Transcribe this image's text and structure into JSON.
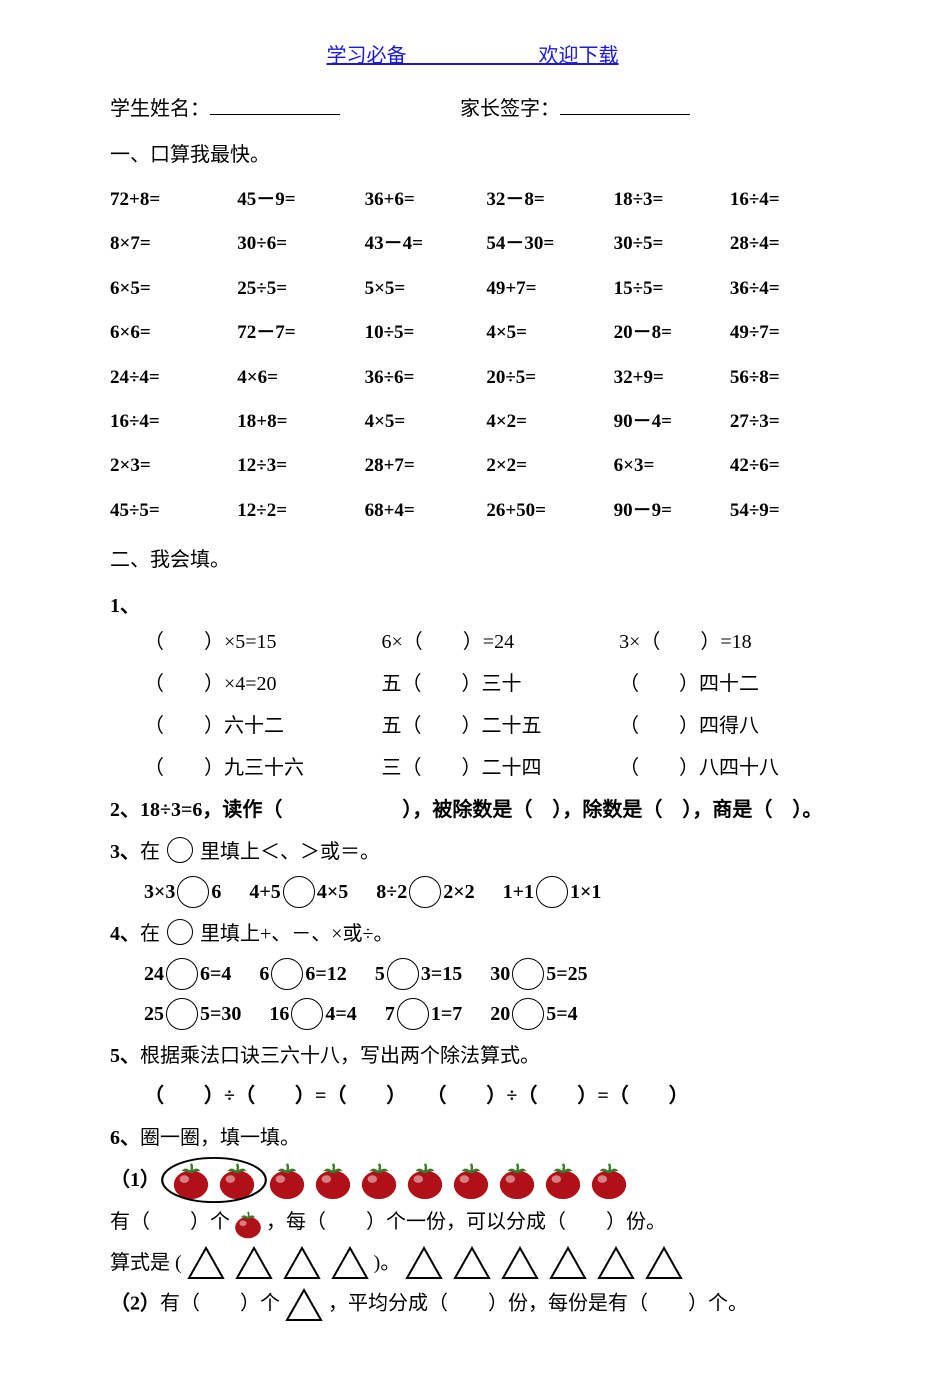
{
  "topLinks": {
    "left": "学习必备",
    "right": "欢迎下载"
  },
  "nameRow": {
    "student": "学生姓名：",
    "parent": "家长签字："
  },
  "section1": {
    "title": "一、口算我最快。"
  },
  "mentalMath": [
    [
      "72+8=",
      "45－9=",
      "36+6=",
      "32－8=",
      "18÷3=",
      "16÷4="
    ],
    [
      "8×7=",
      "30÷6=",
      "43－4=",
      "54－30=",
      "30÷5=",
      "28÷4="
    ],
    [
      "6×5=",
      "25÷5=",
      "5×5=",
      "49+7=",
      "15÷5=",
      "36÷4="
    ],
    [
      "6×6=",
      "72－7=",
      "10÷5=",
      "4×5=",
      "20－8=",
      "49÷7="
    ],
    [
      "24÷4=",
      "4×6=",
      "36÷6=",
      "20÷5=",
      "32+9=",
      "56÷8="
    ],
    [
      "16÷4=",
      "18+8=",
      "4×5=",
      "4×2=",
      "90－4=",
      "27÷3="
    ],
    [
      "2×3=",
      "12÷3=",
      "28+7=",
      "2×2=",
      "6×3=",
      "42÷6="
    ],
    [
      "45÷5=",
      "12÷2=",
      "68+4=",
      "26+50=",
      "90－9=",
      "54÷9="
    ]
  ],
  "section2": {
    "title": "二、我会填。"
  },
  "q1": {
    "num": "1、",
    "rows": [
      [
        "（　　）×5=15",
        "6×（　　）=24",
        "3×（　　）=18"
      ],
      [
        "（　　）×4=20",
        "五（　　）三十",
        "（　　）四十二"
      ],
      [
        "（　　）六十二",
        "五（　　）二十五",
        "（　　）四得八"
      ],
      [
        "（　　）九三十六",
        "三（　　）二十四",
        "（　　）八四十八"
      ]
    ]
  },
  "q2": {
    "num": "2、",
    "text": "18÷3=6，读作（　　　　　　），被除数是（　），除数是（　），商是（　）。"
  },
  "q3": {
    "num": "3、",
    "prompt": "在",
    "prompt2": "里填上＜、＞或＝。",
    "items": [
      {
        "l": "3×3",
        "r": "6"
      },
      {
        "l": "4+5",
        "r": "4×5"
      },
      {
        "l": "8÷2",
        "r": "2×2"
      },
      {
        "l": "1+1",
        "r": "1×1"
      }
    ]
  },
  "q4": {
    "num": "4、",
    "prompt": "在",
    "prompt2": "里填上+、－、×或÷。",
    "row1": [
      {
        "l": "24",
        "r": "6=4"
      },
      {
        "l": "6",
        "r": "6=12"
      },
      {
        "l": "5",
        "r": "3=15"
      },
      {
        "l": "30",
        "r": "5=25"
      }
    ],
    "row2": [
      {
        "l": "25",
        "r": "5=30"
      },
      {
        "l": "16",
        "r": "4=4"
      },
      {
        "l": "7",
        "r": "1=7"
      },
      {
        "l": "20",
        "r": "5=4"
      }
    ]
  },
  "q5": {
    "num": "5、",
    "text": "根据乘法口诀三六十八，写出两个除法算式。",
    "eq": "（　　）÷（　　）=（　　）　　（　　）÷（　　）=（　　）"
  },
  "q6": {
    "num": "6、",
    "title": "圈一圈，填一填。",
    "sub1Label": "（1）",
    "totalTomatoes": 10,
    "circled": 2,
    "line2a": "有（　　）个",
    "line2b": "，每（　　）个一份，可以分成（　　）份。",
    "line3a": "算式是 (",
    "line3gap": 4,
    "line3mid": ")。",
    "line3rest": 6,
    "sub2Label": "（2）",
    "sub2text": "有（　　）个",
    "sub2text2": "，平均分成（　　）份，每份是有（　　）个。"
  },
  "colors": {
    "tomatoBody": "#b01018",
    "tomatoHighlight": "#f0c8c8",
    "tomatoStem": "#3a7a2a",
    "triStroke": "#000000"
  }
}
